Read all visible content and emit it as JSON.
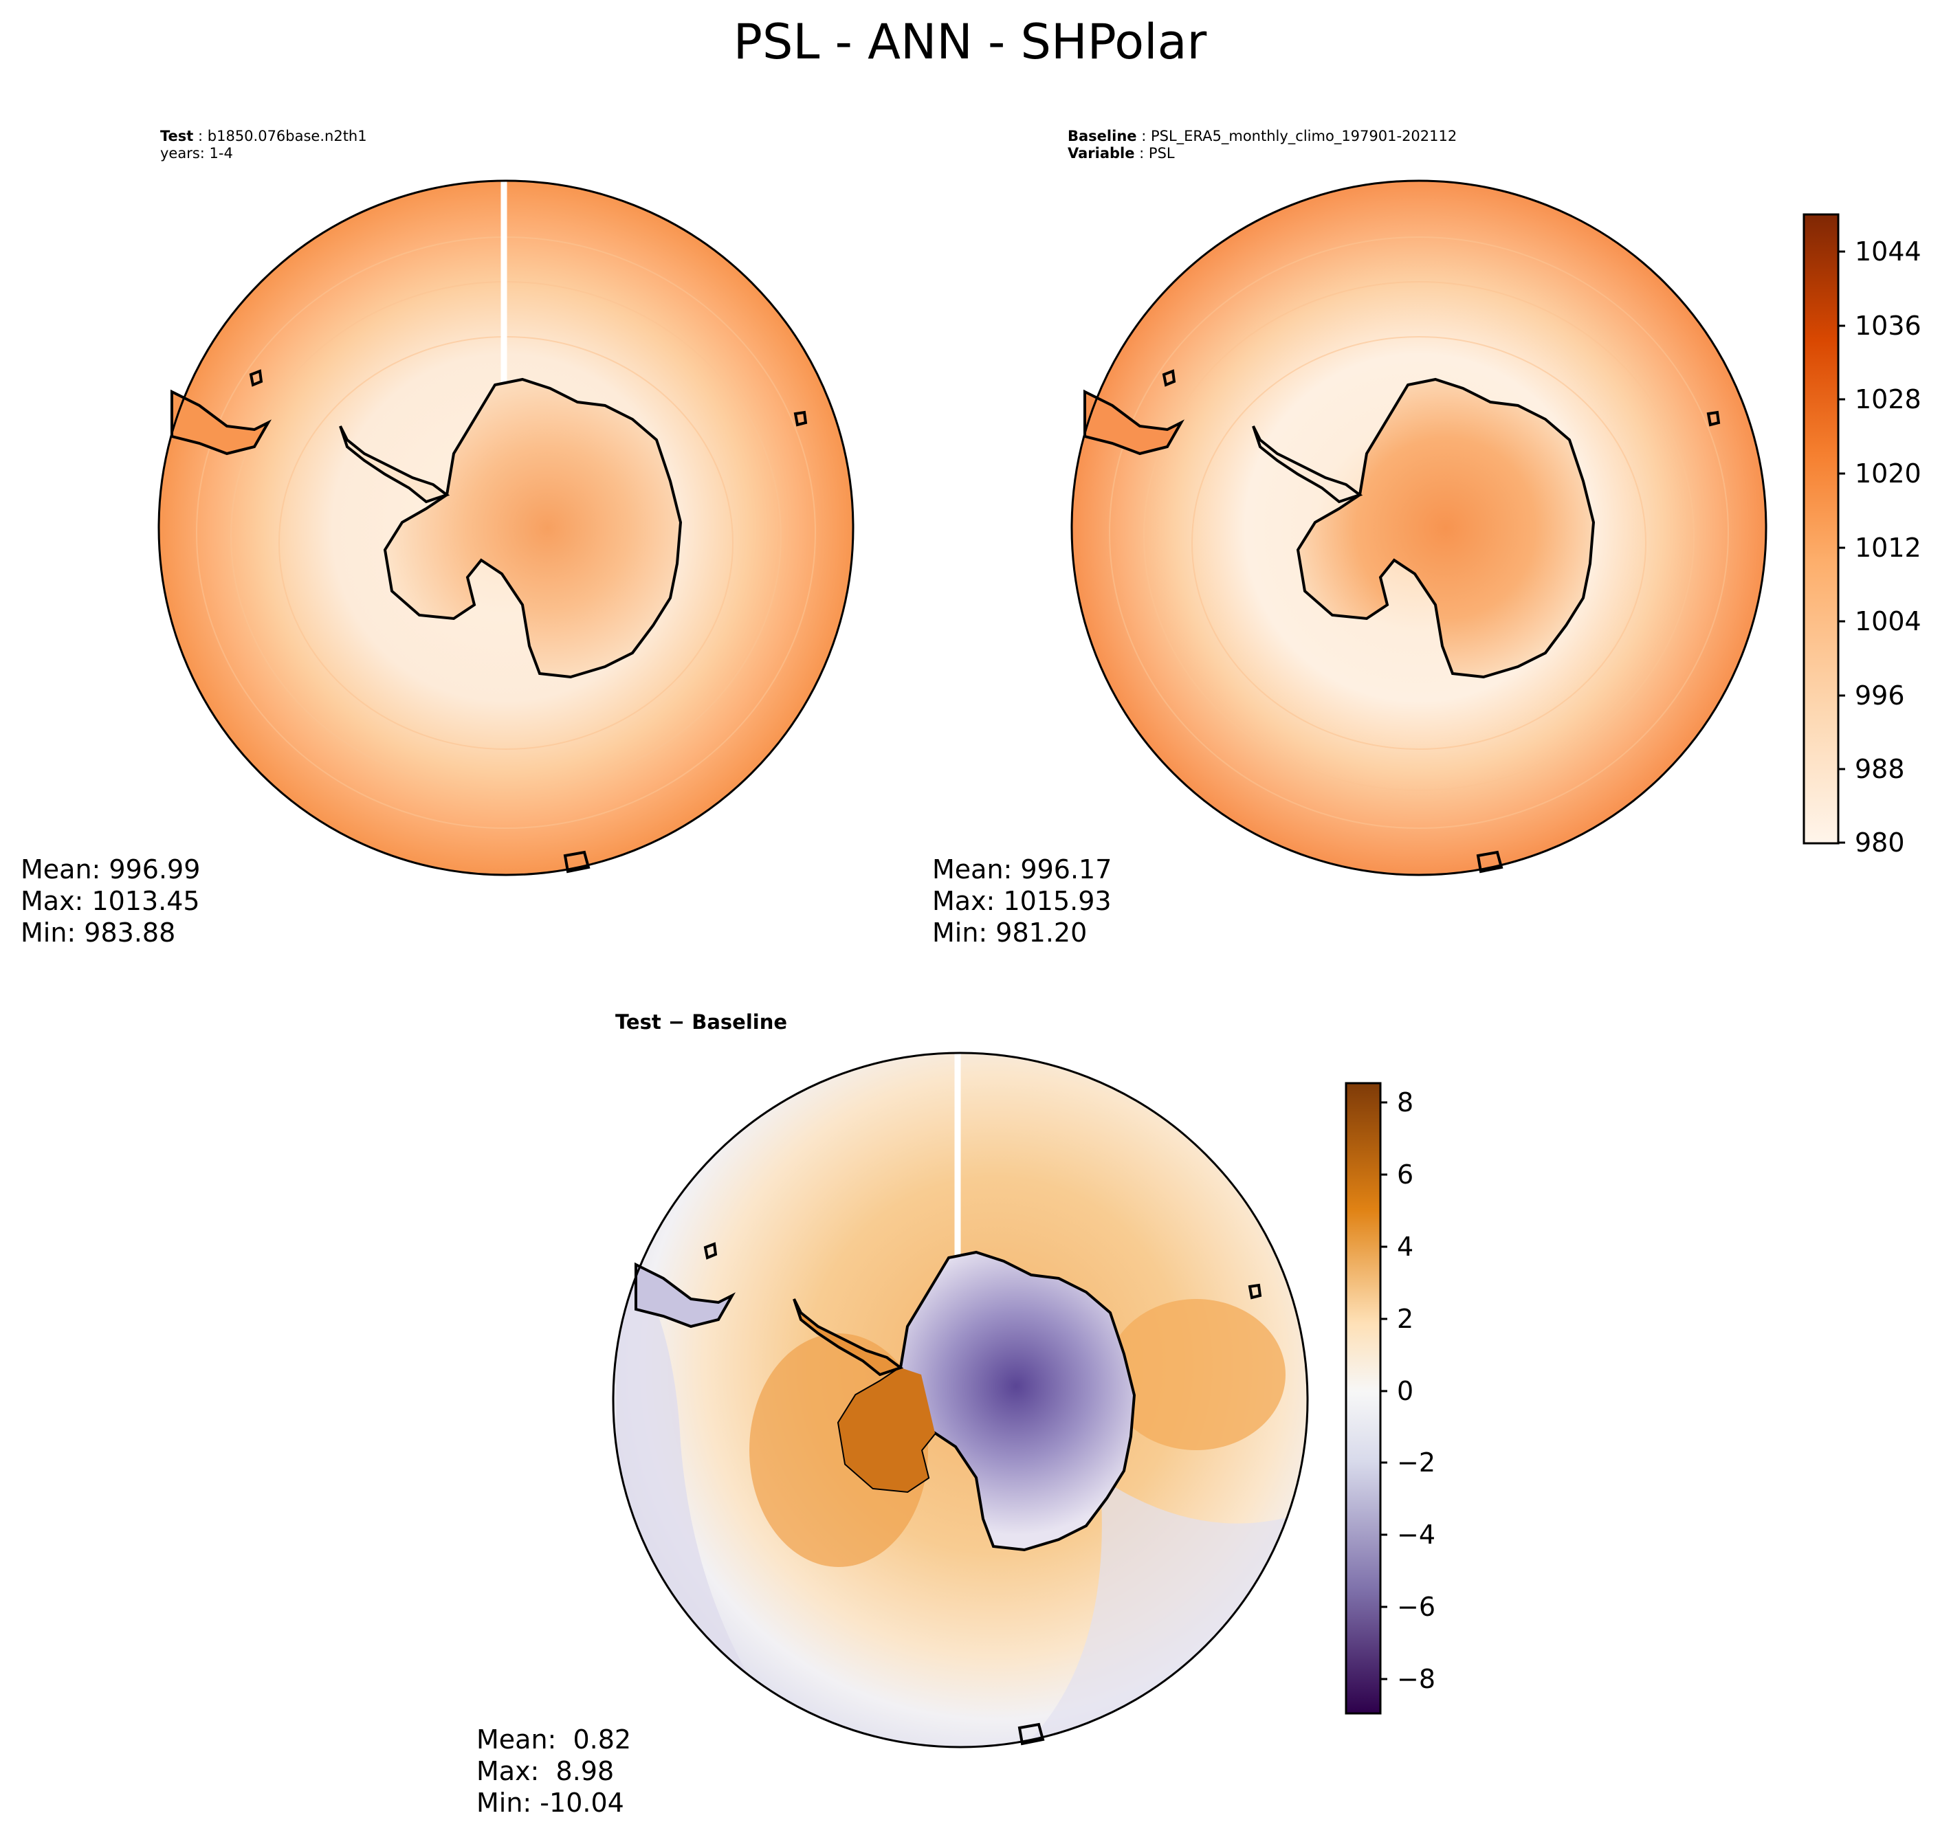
{
  "figure": {
    "title": "PSL - ANN - SHPolar"
  },
  "panels": {
    "test": {
      "label_bold": "Test",
      "case": "b1850.076base.n2th1",
      "years": "years: 1-4",
      "mean": "Mean: 996.99",
      "max": "Max: 1013.45",
      "min": "Min: 983.88"
    },
    "baseline": {
      "label_bold": "Baseline",
      "case": "PSL_ERA5_monthly_climo_197901-202112",
      "variable_bold": "Variable",
      "variable": "PSL",
      "mean": "Mean: 996.17",
      "max": "Max: 1015.93",
      "min": "Min: 981.20"
    },
    "diff": {
      "title_part1": "Test",
      "title_part2": "Baseline",
      "mean": "Mean:  0.82",
      "max": "Max:  8.98",
      "min": "Min: -10.04"
    }
  },
  "colorbars": {
    "psl": {
      "ticks": [
        "1044",
        "1036",
        "1028",
        "1020",
        "1012",
        "1004",
        "996",
        "988",
        "980"
      ],
      "range": [
        980,
        1048
      ],
      "colormap": "Oranges",
      "colors": [
        "#fff5eb",
        "#fdd9b4",
        "#fdae6b",
        "#f57f2f",
        "#d94801",
        "#7f2704"
      ]
    },
    "diff": {
      "ticks": [
        "8",
        "6",
        "4",
        "2",
        "0",
        "−2",
        "−4",
        "−6",
        "−8"
      ],
      "range": [
        -9,
        8.5
      ],
      "colormap": "PuOr_r",
      "colors": [
        "#2d004b",
        "#8073ac",
        "#d8daeb",
        "#f7f7f7",
        "#fee0b6",
        "#e08214",
        "#7f3b08"
      ]
    }
  }
}
